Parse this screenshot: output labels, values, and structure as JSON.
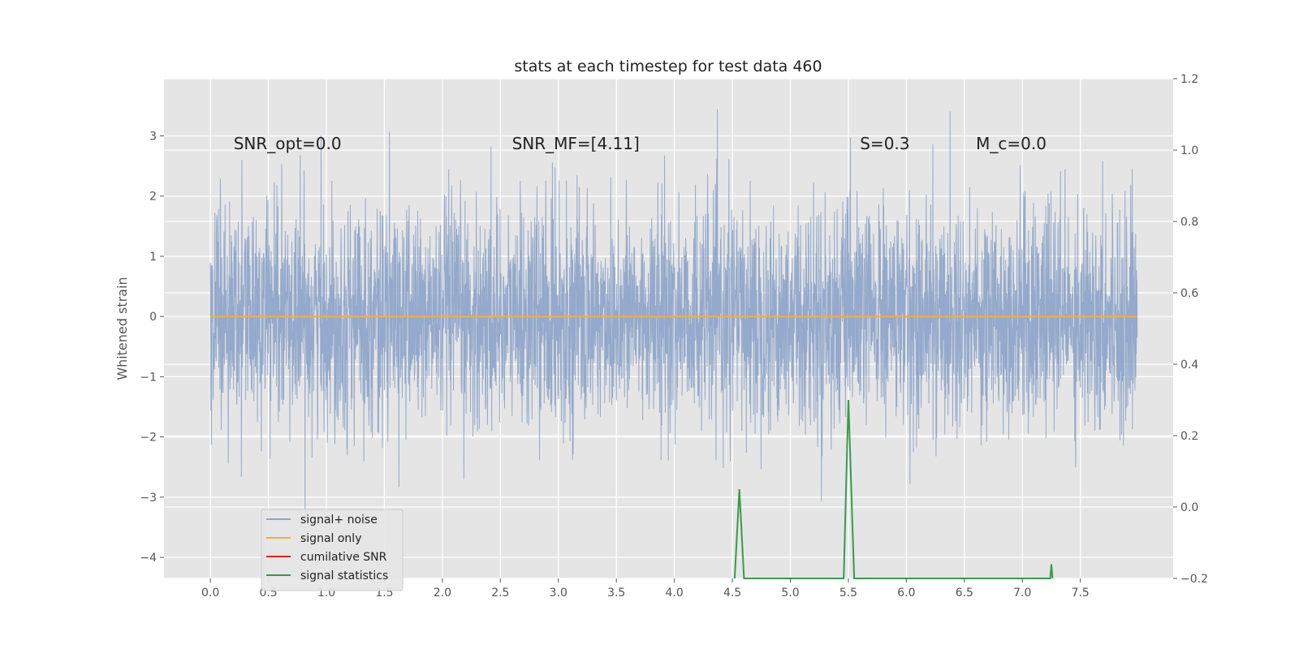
{
  "chart_data": {
    "type": "line",
    "title": "stats at each timestep for test data 460",
    "ylabel": "Whitened strain",
    "xlim": [
      -0.4,
      8.3
    ],
    "ylim": [
      -4.35,
      3.95
    ],
    "y2lim": [
      -0.2,
      1.2
    ],
    "xticks": [
      0.0,
      0.5,
      1.0,
      1.5,
      2.0,
      2.5,
      3.0,
      3.5,
      4.0,
      4.5,
      5.0,
      5.5,
      6.0,
      6.5,
      7.0,
      7.5
    ],
    "xtick_labels": [
      "0.0",
      "0.5",
      "1.0",
      "1.5",
      "2.0",
      "2.5",
      "3.0",
      "3.5",
      "4.0",
      "4.5",
      "5.0",
      "5.5",
      "6.0",
      "6.5",
      "7.0",
      "7.5"
    ],
    "yticks": [
      -4,
      -3,
      -2,
      -1,
      0,
      1,
      2,
      3
    ],
    "ytick_labels": [
      "−4",
      "−3",
      "−2",
      "−1",
      "0",
      "1",
      "2",
      "3"
    ],
    "y2ticks": [
      -0.2,
      0.0,
      0.2,
      0.4,
      0.6,
      0.8,
      1.0,
      1.2
    ],
    "y2tick_labels": [
      "−0.2",
      "0.0",
      "0.2",
      "0.4",
      "0.6",
      "0.8",
      "1.0",
      "1.2"
    ],
    "grid": true,
    "legend_position": "lower-left",
    "series": [
      {
        "name": "signal+ noise",
        "color": "#8fa5c9",
        "axis": "left",
        "kind": "noise",
        "x_range": [
          0.0,
          7.99
        ],
        "approx_std": 0.9,
        "approx_max": 3.6,
        "approx_min": -3.95
      },
      {
        "name": "signal only",
        "color": "#e8b04a",
        "axis": "left",
        "x": [
          0.0,
          7.99
        ],
        "y": [
          0.0,
          0.0
        ]
      },
      {
        "name": "cumilative SNR",
        "color": "#d62728",
        "axis": "right",
        "x": [],
        "y": []
      },
      {
        "name": "signal statistics",
        "color": "#3a9a4a",
        "axis": "right",
        "x": [
          4.52,
          4.56,
          4.6,
          5.46,
          5.5,
          5.55,
          7.24,
          7.25,
          7.26
        ],
        "y": [
          -0.2,
          0.05,
          -0.2,
          -0.2,
          0.3,
          -0.2,
          -0.2,
          -0.16,
          -0.2
        ]
      }
    ],
    "annotations": [
      {
        "text": "SNR_opt=0.0",
        "x": 0.2
      },
      {
        "text": "SNR_MF=[4.11]",
        "x": 2.6
      },
      {
        "text": "S=0.3",
        "x": 5.6
      },
      {
        "text": "M_c=0.0",
        "x": 6.6
      }
    ]
  }
}
